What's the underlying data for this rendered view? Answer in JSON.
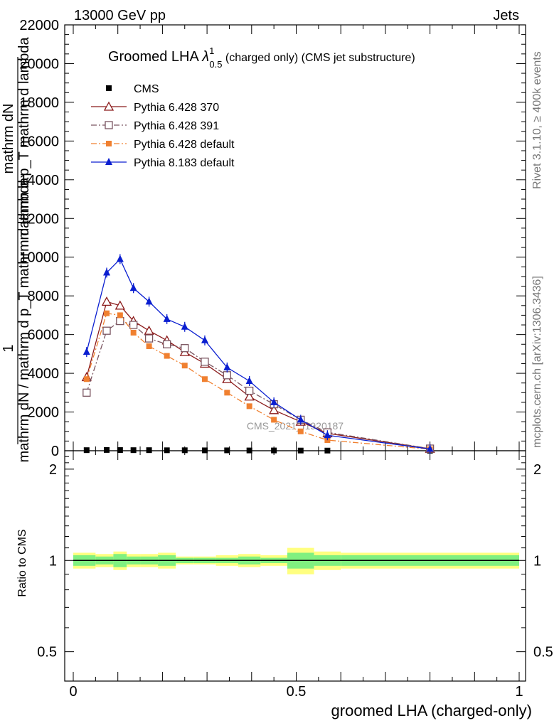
{
  "header": {
    "energy_label": "13000 GeV pp",
    "process_label": "Jets"
  },
  "side_labels": {
    "rivet": "Rivet 3.1.10, ≥ 400k events",
    "mcplots": "mcplots.cern.ch [arXiv:1306.3436]"
  },
  "main_plot": {
    "title_prefix": "Groomed LHA ",
    "title_symbol": "λ",
    "title_sup": "1",
    "title_sub": "0.5",
    "title_suffix": " (charged only) (CMS jet substructure)",
    "watermark": "CMS_2021_I1920187",
    "ylabel_top": "mathrm dN",
    "ylabel_top2": "mathrm d p_T mathrm d lambda",
    "ylabel_num": "1",
    "ylabel_bottom": "mathrm dN / mathrm d p_T mathrm d lambda"
  },
  "ratio_plot": {
    "ylabel": "Ratio to CMS"
  },
  "xaxis": {
    "label": "groomed LHA (charged-only)"
  },
  "colors": {
    "cms": "#000000",
    "p370": "#8b1a1a",
    "p391": "#7a5560",
    "p6def": "#f08030",
    "p8def": "#0a1ed0",
    "band_yellow": "#ffff80",
    "band_green": "#80f080"
  },
  "chart_data": {
    "type": "line",
    "xlim": [
      0,
      1
    ],
    "ylim": [
      0,
      22000
    ],
    "ratio_ylim": [
      0.4,
      2.3
    ],
    "x_ticks": [
      0,
      0.5,
      1
    ],
    "x_tick_labels": [
      "0",
      "0.5",
      "1"
    ],
    "y_ticks": [
      0,
      2000,
      4000,
      6000,
      8000,
      10000,
      12000,
      14000,
      16000,
      18000,
      20000,
      22000
    ],
    "y_tick_labels": [
      "0",
      "2000",
      "4000",
      "6000",
      "8000",
      "10000",
      "12000",
      "14000",
      "16000",
      "18000",
      "20000",
      "22000"
    ],
    "ratio_ticks": [
      0.5,
      1,
      2
    ],
    "ratio_tick_labels": [
      "0.5",
      "1",
      "2"
    ],
    "bin_edges": [
      0.0,
      0.05,
      0.09,
      0.12,
      0.15,
      0.19,
      0.23,
      0.27,
      0.32,
      0.37,
      0.42,
      0.48,
      0.54,
      0.6,
      1.0
    ],
    "x": [
      0.03,
      0.075,
      0.105,
      0.135,
      0.17,
      0.21,
      0.25,
      0.295,
      0.345,
      0.395,
      0.45,
      0.51,
      0.57,
      0.8
    ],
    "series": [
      {
        "name": "CMS",
        "key": "cms",
        "marker": "square-filled",
        "line": "none",
        "values": [
          30,
          40,
          35,
          30,
          30,
          25,
          25,
          20,
          20,
          15,
          15,
          10,
          8,
          2
        ]
      },
      {
        "name": "Pythia 6.428 370",
        "key": "p370",
        "marker": "triangle-open",
        "line": "solid",
        "values": [
          3800,
          7700,
          7500,
          6700,
          6200,
          5700,
          5100,
          4500,
          3700,
          2800,
          2100,
          1500,
          900,
          100
        ]
      },
      {
        "name": "Pythia 6.428 391",
        "key": "p391",
        "marker": "square-open",
        "line": "dashdot",
        "values": [
          3000,
          6200,
          6700,
          6500,
          5800,
          5500,
          5300,
          4600,
          3900,
          3100,
          2400,
          1600,
          950,
          110
        ]
      },
      {
        "name": "Pythia 6.428 default",
        "key": "p6def",
        "marker": "square-filled-small",
        "line": "dashdot",
        "values": [
          3700,
          7100,
          7000,
          6100,
          5400,
          4900,
          4400,
          3700,
          3000,
          2300,
          1600,
          1000,
          550,
          80
        ]
      },
      {
        "name": "Pythia 8.183 default",
        "key": "p8def",
        "marker": "triangle-filled",
        "line": "solid",
        "values": [
          5100,
          9200,
          9900,
          8400,
          7700,
          6800,
          6400,
          5700,
          4300,
          3600,
          2500,
          1600,
          800,
          90
        ]
      }
    ],
    "ratio_band_yellow_halfwidth": [
      0.06,
      0.05,
      0.07,
      0.05,
      0.05,
      0.06,
      0.03,
      0.03,
      0.04,
      0.05,
      0.04,
      0.1,
      0.07,
      0.06
    ],
    "ratio_band_green_halfwidth": [
      0.04,
      0.03,
      0.05,
      0.03,
      0.03,
      0.04,
      0.02,
      0.02,
      0.02,
      0.03,
      0.02,
      0.06,
      0.04,
      0.04
    ]
  }
}
